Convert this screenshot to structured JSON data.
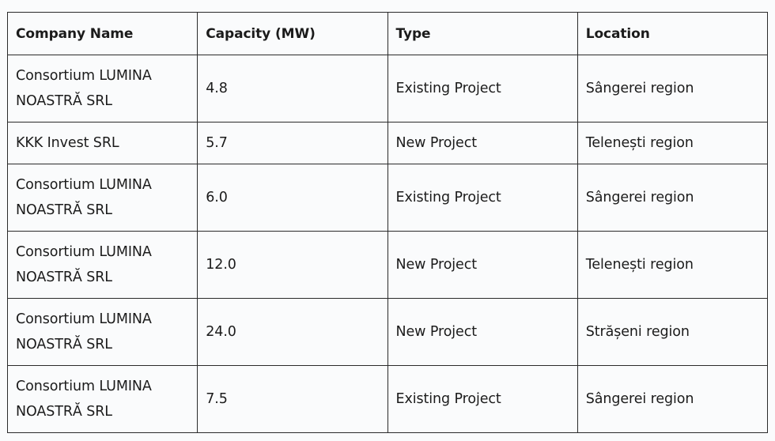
{
  "table": {
    "headers": [
      "Company Name",
      "Capacity (MW)",
      "Type",
      "Location"
    ],
    "rows": [
      {
        "company": "Consortium LUMINA NOASTRĂ SRL",
        "capacity": "4.8",
        "type": "Existing Project",
        "location": "Sângerei region"
      },
      {
        "company": "KKK Invest SRL",
        "capacity": "5.7",
        "type": "New Project",
        "location": "Telenești region"
      },
      {
        "company": "Consortium LUMINA NOASTRĂ SRL",
        "capacity": "6.0",
        "type": "Existing Project",
        "location": "Sângerei region"
      },
      {
        "company": "Consortium LUMINA NOASTRĂ SRL",
        "capacity": "12.0",
        "type": "New Project",
        "location": "Telenești region"
      },
      {
        "company": "Consortium LUMINA NOASTRĂ SRL",
        "capacity": "24.0",
        "type": "New Project",
        "location": "Strășeni region"
      },
      {
        "company": "Consortium LUMINA NOASTRĂ SRL",
        "capacity": "7.5",
        "type": "Existing Project",
        "location": "Sângerei region"
      }
    ]
  }
}
